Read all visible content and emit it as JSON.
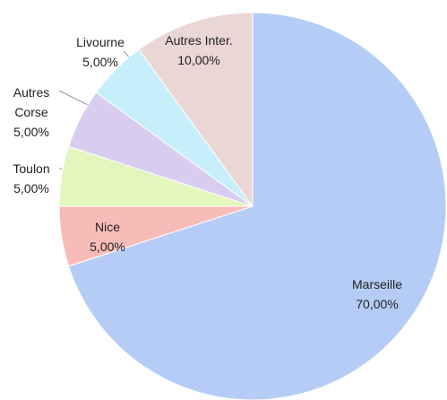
{
  "chart_data": {
    "type": "pie",
    "categories": [
      "Marseille",
      "Nice",
      "Toulon",
      "Autres Corse",
      "Livourne",
      "Autres Inter."
    ],
    "values": [
      70,
      5,
      5,
      5,
      5,
      10
    ],
    "value_labels": [
      "70,00%",
      "5,00%",
      "5,00%",
      "5,00%",
      "5,00%",
      "10,00%"
    ],
    "colors": [
      "#b5cdf6",
      "#f8bcb8",
      "#e2f6bd",
      "#d8cdf1",
      "#c7effb",
      "#ead6d5"
    ]
  }
}
